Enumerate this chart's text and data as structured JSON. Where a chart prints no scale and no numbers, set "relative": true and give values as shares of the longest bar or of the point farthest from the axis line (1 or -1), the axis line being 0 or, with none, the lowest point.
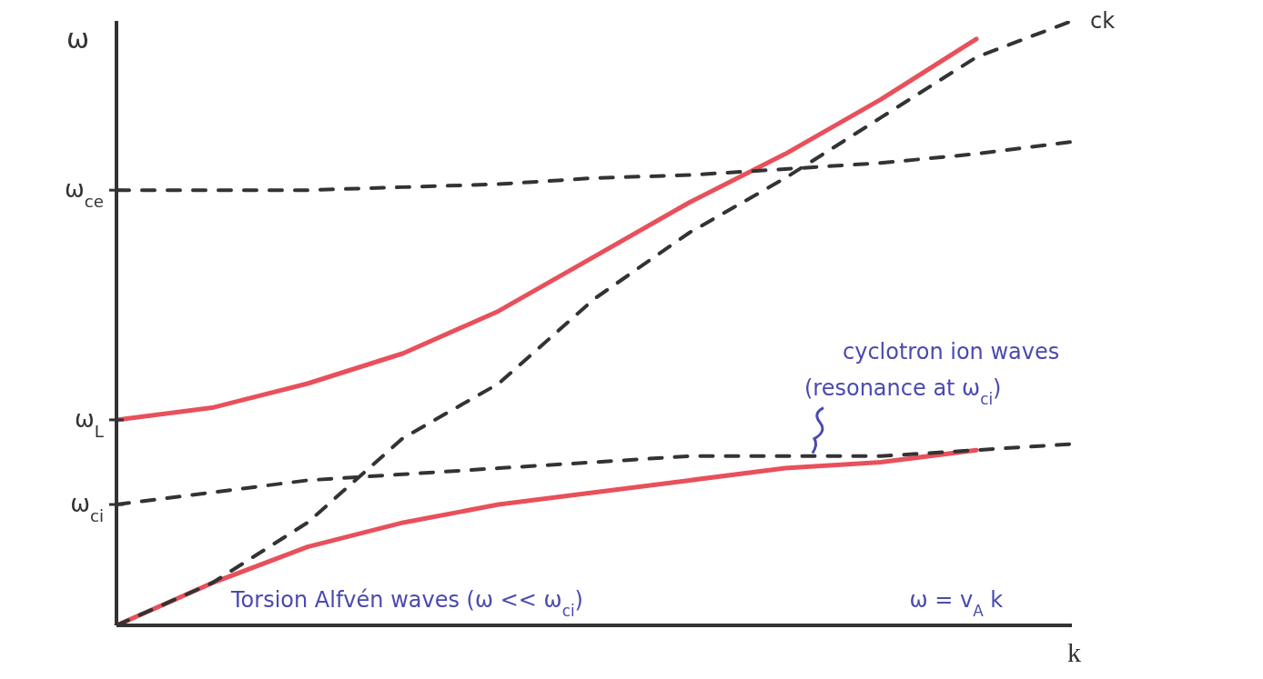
{
  "chart_data": {
    "type": "line",
    "relative": true,
    "xlabel": "k",
    "ylabel": "ω",
    "categories": [
      null,
      null,
      null,
      null,
      null,
      null,
      null,
      null,
      null,
      null,
      null
    ],
    "series": [
      {
        "color": "#e8505b",
        "line_style": "solid",
        "values": [
          0.34,
          0.36,
          0.4,
          0.45,
          0.52,
          0.61,
          0.7,
          0.78,
          0.87,
          0.97,
          null
        ]
      },
      {
        "color": "#e8505b",
        "line_style": "solid",
        "values": [
          0,
          0.07,
          0.13,
          0.17,
          0.2,
          0.22,
          0.24,
          0.26,
          0.27,
          0.29,
          null
        ]
      },
      {
        "color": "#333333",
        "line_style": "dashed",
        "values": [
          0,
          0.07,
          0.17,
          0.31,
          0.4,
          0.54,
          0.65,
          0.74,
          0.84,
          0.94,
          1.0
        ]
      },
      {
        "color": "#333333",
        "line_style": "dashed",
        "values": [
          0.72,
          0.72,
          0.72,
          0.725,
          0.73,
          0.74,
          0.745,
          0.755,
          0.765,
          0.78,
          0.8
        ]
      },
      {
        "color": "#333333",
        "line_style": "dashed",
        "values": [
          0.2,
          0.22,
          0.24,
          0.25,
          0.26,
          0.27,
          0.28,
          0.28,
          0.28,
          0.29,
          0.3
        ]
      }
    ],
    "annotations": [
      "ω$_{ce}$",
      "ω$_{L}$",
      "ω$_{ci}$",
      "ck",
      "ω = v$_{A}$ k",
      "cyclotron ion waves",
      "(resonance at ω$_{ci}$)",
      "Torsion Alfvén waves (ω << ω$_{ci}$)"
    ],
    "legend": false,
    "grid": false
  }
}
